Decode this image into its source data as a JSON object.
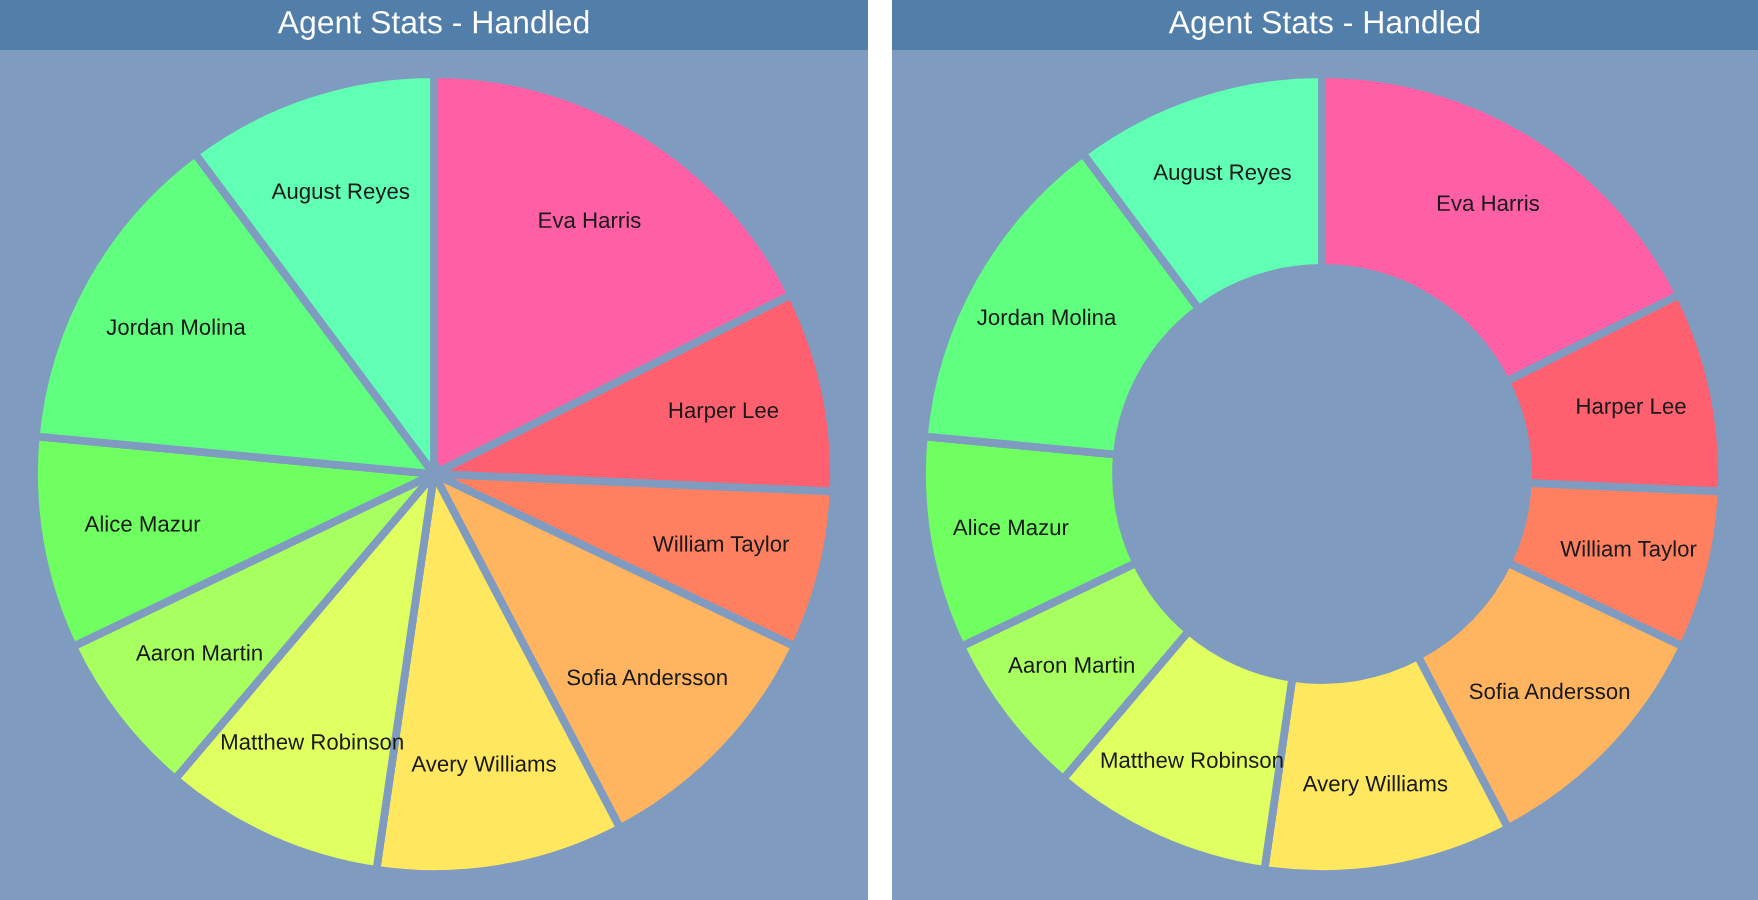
{
  "chart_data": [
    {
      "type": "pie",
      "title": "Agent Stats - Handled",
      "categories": [
        "Eva Harris",
        "Harper Lee",
        "William Taylor",
        "Sofia Andersson",
        "Avery Williams",
        "Matthew Robinson",
        "Aaron Martin",
        "Alice Mazur",
        "Jordan Molina",
        "August Reyes"
      ],
      "values": [
        17.6,
        8.1,
        6.4,
        10.2,
        10.0,
        8.9,
        6.7,
        8.6,
        13.3,
        10.2
      ],
      "colors": [
        "#ff5fa5",
        "#ff6070",
        "#ff8060",
        "#ffb460",
        "#ffe860",
        "#e0ff60",
        "#a8ff60",
        "#70ff60",
        "#60ff80",
        "#60ffb4"
      ]
    },
    {
      "type": "donut",
      "title": "Agent Stats - Handled",
      "categories": [
        "Eva Harris",
        "Harper Lee",
        "William Taylor",
        "Sofia Andersson",
        "Avery Williams",
        "Matthew Robinson",
        "Aaron Martin",
        "Alice Mazur",
        "Jordan Molina",
        "August Reyes"
      ],
      "values": [
        17.6,
        8.1,
        6.4,
        10.2,
        10.0,
        8.9,
        6.7,
        8.6,
        13.3,
        10.2
      ],
      "colors": [
        "#ff5fa5",
        "#ff6070",
        "#ff8060",
        "#ffb460",
        "#ffe860",
        "#e0ff60",
        "#a8ff60",
        "#70ff60",
        "#60ff80",
        "#60ffb4"
      ]
    }
  ]
}
